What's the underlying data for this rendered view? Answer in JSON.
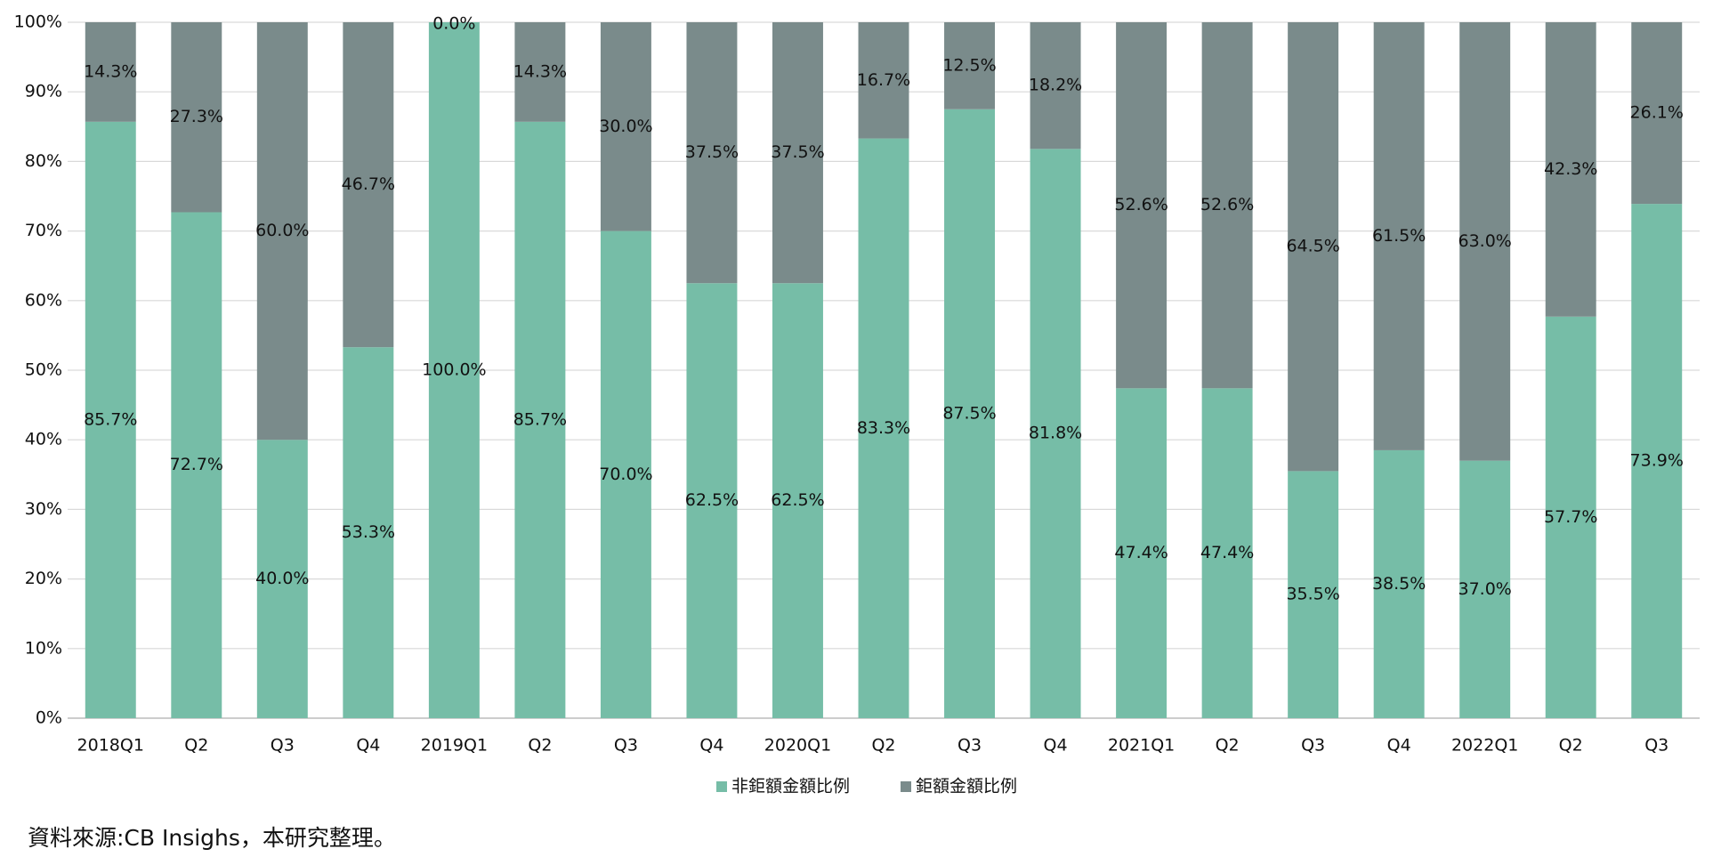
{
  "chart_data": {
    "type": "stacked_bar",
    "categories": [
      "2018Q1",
      "Q2",
      "Q3",
      "Q4",
      "2019Q1",
      "Q2",
      "Q3",
      "Q4",
      "2020Q1",
      "Q2",
      "Q3",
      "Q4",
      "2021Q1",
      "Q2",
      "Q3",
      "Q4",
      "2022Q1",
      "Q2",
      "Q3"
    ],
    "series": [
      {
        "name": "非鉅額金額比例",
        "color": "#76bda7",
        "values": [
          85.7,
          72.7,
          40.0,
          53.3,
          100.0,
          85.7,
          70.0,
          62.5,
          62.5,
          83.3,
          87.5,
          81.8,
          47.4,
          47.4,
          35.5,
          38.5,
          37.0,
          57.7,
          73.9
        ],
        "value_labels": [
          "85.7%",
          "72.7%",
          "40.0%",
          "53.3%",
          "100.0%",
          "85.7%",
          "70.0%",
          "62.5%",
          "62.5%",
          "83.3%",
          "87.5%",
          "81.8%",
          "47.4%",
          "47.4%",
          "35.5%",
          "38.5%",
          "37.0%",
          "57.7%",
          "73.9%"
        ]
      },
      {
        "name": "鉅額金額比例",
        "color": "#7a8b8b",
        "values": [
          14.3,
          27.3,
          60.0,
          46.7,
          0.0,
          14.3,
          30.0,
          37.5,
          37.5,
          16.7,
          12.5,
          18.2,
          52.6,
          52.6,
          64.5,
          61.5,
          63.0,
          42.3,
          26.1
        ],
        "value_labels": [
          "14.3%",
          "27.3%",
          "60.0%",
          "46.7%",
          "0.0%",
          "14.3%",
          "30.0%",
          "37.5%",
          "37.5%",
          "16.7%",
          "12.5%",
          "18.2%",
          "52.6%",
          "52.6%",
          "64.5%",
          "61.5%",
          "63.0%",
          "42.3%",
          "26.1%"
        ]
      }
    ],
    "ylim": [
      0,
      100
    ],
    "yticks": [
      {
        "value": 0,
        "label": "0%"
      },
      {
        "value": 10,
        "label": "10%"
      },
      {
        "value": 20,
        "label": "20%"
      },
      {
        "value": 30,
        "label": "30%"
      },
      {
        "value": 40,
        "label": "40%"
      },
      {
        "value": 50,
        "label": "50%"
      },
      {
        "value": 60,
        "label": "60%"
      },
      {
        "value": 70,
        "label": "70%"
      },
      {
        "value": 80,
        "label": "80%"
      },
      {
        "value": 90,
        "label": "90%"
      },
      {
        "value": 100,
        "label": "100%"
      }
    ],
    "grid": true,
    "legend": "bottom",
    "source": "資料來源:CB Insighs，本研究整理。"
  }
}
